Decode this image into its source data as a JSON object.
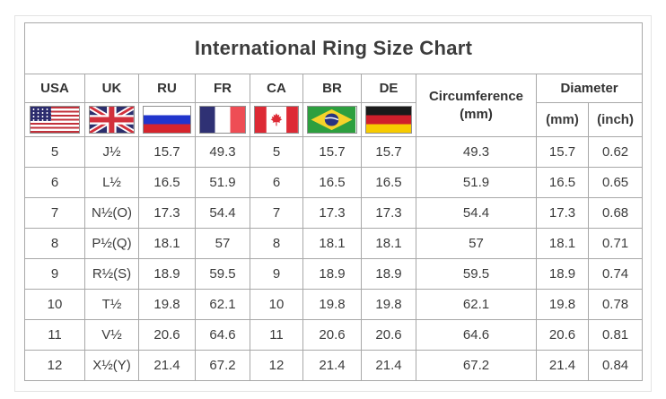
{
  "title": "International Ring Size Chart",
  "table": {
    "country_columns": [
      {
        "code": "USA",
        "flag": "usa-flag-icon"
      },
      {
        "code": "UK",
        "flag": "uk-flag-icon"
      },
      {
        "code": "RU",
        "flag": "ru-flag-icon"
      },
      {
        "code": "FR",
        "flag": "fr-flag-icon"
      },
      {
        "code": "CA",
        "flag": "ca-flag-icon"
      },
      {
        "code": "BR",
        "flag": "br-flag-icon"
      },
      {
        "code": "DE",
        "flag": "de-flag-icon"
      }
    ],
    "circumference": {
      "label": "Circumference",
      "unit": "(mm)"
    },
    "diameter": {
      "label": "Diameter",
      "units": [
        "(mm)",
        "(inch)"
      ]
    }
  },
  "chart_data": {
    "type": "table",
    "title": "International Ring Size Chart",
    "columns": [
      "USA",
      "UK",
      "RU",
      "FR",
      "CA",
      "BR",
      "DE",
      "Circumference (mm)",
      "Diameter (mm)",
      "Diameter (inch)"
    ],
    "rows": [
      [
        "5",
        "J½",
        "15.7",
        "49.3",
        "5",
        "15.7",
        "15.7",
        "49.3",
        "15.7",
        "0.62"
      ],
      [
        "6",
        "L½",
        "16.5",
        "51.9",
        "6",
        "16.5",
        "16.5",
        "51.9",
        "16.5",
        "0.65"
      ],
      [
        "7",
        "N½(O)",
        "17.3",
        "54.4",
        "7",
        "17.3",
        "17.3",
        "54.4",
        "17.3",
        "0.68"
      ],
      [
        "8",
        "P½(Q)",
        "18.1",
        "57",
        "8",
        "18.1",
        "18.1",
        "57",
        "18.1",
        "0.71"
      ],
      [
        "9",
        "R½(S)",
        "18.9",
        "59.5",
        "9",
        "18.9",
        "18.9",
        "59.5",
        "18.9",
        "0.74"
      ],
      [
        "10",
        "T½",
        "19.8",
        "62.1",
        "10",
        "19.8",
        "19.8",
        "62.1",
        "19.8",
        "0.78"
      ],
      [
        "11",
        "V½",
        "20.6",
        "64.6",
        "11",
        "20.6",
        "20.6",
        "64.6",
        "20.6",
        "0.81"
      ],
      [
        "12",
        "X½(Y)",
        "21.4",
        "67.2",
        "12",
        "21.4",
        "21.4",
        "67.2",
        "21.4",
        "0.84"
      ]
    ]
  },
  "colors": {
    "table_border": "#a8a8a8",
    "outer_frame_border": "#e3e3e3",
    "title_text": "#2d2d2d",
    "cell_text": "#3a3a3a",
    "flags": {
      "usa_red": "#c2313b",
      "usa_blue": "#2c2c6e",
      "uk_blue": "#2c2f6d",
      "uk_red": "#d2303c",
      "ru_blue": "#2135cc",
      "ru_red": "#d6242c",
      "fr_blue": "#2f3174",
      "fr_red": "#ee4d55",
      "ca_red": "#dd2a35",
      "br_green": "#2d9f3f",
      "br_yellow": "#f5d32a",
      "br_blue": "#283380",
      "de_black": "#1a1a1a",
      "de_red": "#d01f2b",
      "de_gold": "#f7cb00"
    }
  }
}
